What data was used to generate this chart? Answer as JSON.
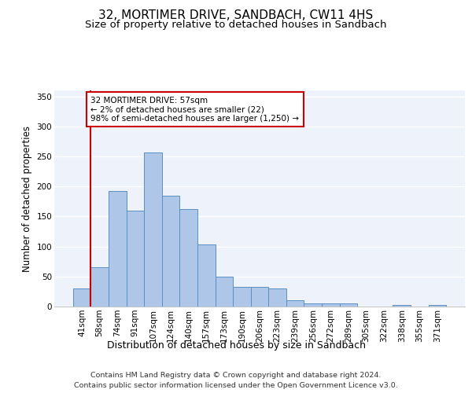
{
  "title": "32, MORTIMER DRIVE, SANDBACH, CW11 4HS",
  "subtitle": "Size of property relative to detached houses in Sandbach",
  "xlabel": "Distribution of detached houses by size in Sandbach",
  "ylabel": "Number of detached properties",
  "bar_labels": [
    "41sqm",
    "58sqm",
    "74sqm",
    "91sqm",
    "107sqm",
    "124sqm",
    "140sqm",
    "157sqm",
    "173sqm",
    "190sqm",
    "206sqm",
    "223sqm",
    "239sqm",
    "256sqm",
    "272sqm",
    "289sqm",
    "305sqm",
    "322sqm",
    "338sqm",
    "355sqm",
    "371sqm"
  ],
  "bar_values": [
    30,
    65,
    193,
    160,
    257,
    184,
    162,
    103,
    50,
    33,
    33,
    30,
    10,
    5,
    5,
    5,
    0,
    0,
    3,
    0,
    3
  ],
  "bar_color": "#aec6e8",
  "bar_edge_color": "#5a8fc2",
  "background_color": "#eef2fb",
  "grid_color": "#ffffff",
  "annotation_box_text": "32 MORTIMER DRIVE: 57sqm\n← 2% of detached houses are smaller (22)\n98% of semi-detached houses are larger (1,250) →",
  "vline_color": "#cc0000",
  "ylim": [
    0,
    360
  ],
  "yticks": [
    0,
    50,
    100,
    150,
    200,
    250,
    300,
    350
  ],
  "footer_line1": "Contains HM Land Registry data © Crown copyright and database right 2024.",
  "footer_line2": "Contains public sector information licensed under the Open Government Licence v3.0.",
  "title_fontsize": 11,
  "subtitle_fontsize": 9.5,
  "xlabel_fontsize": 9,
  "ylabel_fontsize": 8.5,
  "tick_fontsize": 7.5,
  "footer_fontsize": 6.8
}
